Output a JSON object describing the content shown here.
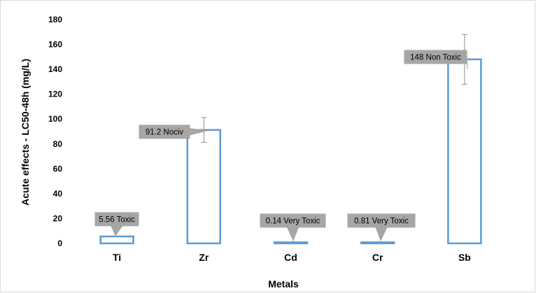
{
  "chart_data": {
    "type": "bar",
    "categories": [
      "Ti",
      "Zr",
      "Cd",
      "Cr",
      "Sb"
    ],
    "values": [
      5.56,
      91.2,
      0.14,
      0.81,
      148
    ],
    "error_bars": [
      null,
      10,
      null,
      null,
      20
    ],
    "data_labels": [
      "5.56 Toxic",
      "91.2 Nociv",
      "0.14 Very Toxic",
      "0.81 Very Toxic",
      "148 Non Toxic"
    ],
    "xlabel": "Metals",
    "ylabel": "Acute effects - LC50-48h (mg/L)",
    "ylim": [
      0,
      180
    ],
    "yticks": [
      0,
      20,
      40,
      60,
      80,
      100,
      120,
      140,
      160,
      180
    ],
    "grid": false,
    "legend": "none",
    "colors": {
      "bar_stroke": "#5b9bd5",
      "bar_fill": "#ffffff",
      "label_bg": "#a6a6a6",
      "error_bar": "#8c8c8c"
    }
  }
}
